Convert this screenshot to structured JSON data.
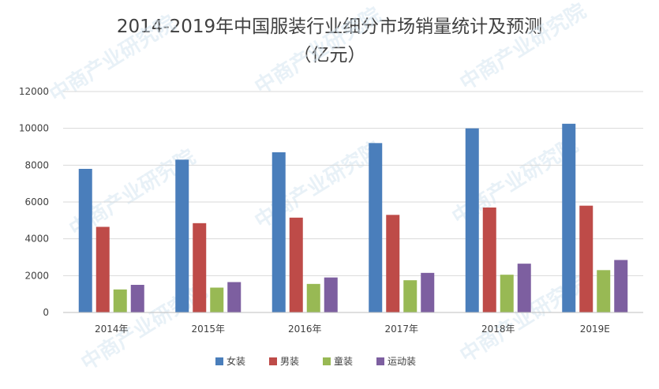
{
  "chart_data": {
    "type": "bar",
    "title": "2014-2019年中国服装行业细分市场销量统计及预测",
    "subtitle": "（亿元）",
    "categories": [
      "2014年",
      "2015年",
      "2016年",
      "2017年",
      "2018年",
      "2019E"
    ],
    "series": [
      {
        "name": "女装",
        "color": "#4a7ebb",
        "values": [
          7800,
          8300,
          8700,
          9200,
          10000,
          10250
        ]
      },
      {
        "name": "男装",
        "color": "#be4b48",
        "values": [
          4650,
          4850,
          5150,
          5300,
          5700,
          5800
        ]
      },
      {
        "name": "童装",
        "color": "#98b954",
        "values": [
          1250,
          1350,
          1550,
          1750,
          2050,
          2300
        ]
      },
      {
        "name": "运动装",
        "color": "#7d5fa0",
        "values": [
          1500,
          1650,
          1900,
          2150,
          2650,
          2850
        ]
      }
    ],
    "ylim": [
      0,
      12000
    ],
    "yticks": [
      0,
      2000,
      4000,
      6000,
      8000,
      10000,
      12000
    ],
    "grid": true,
    "legend_position": "bottom",
    "watermark": "中商产业研究院"
  }
}
